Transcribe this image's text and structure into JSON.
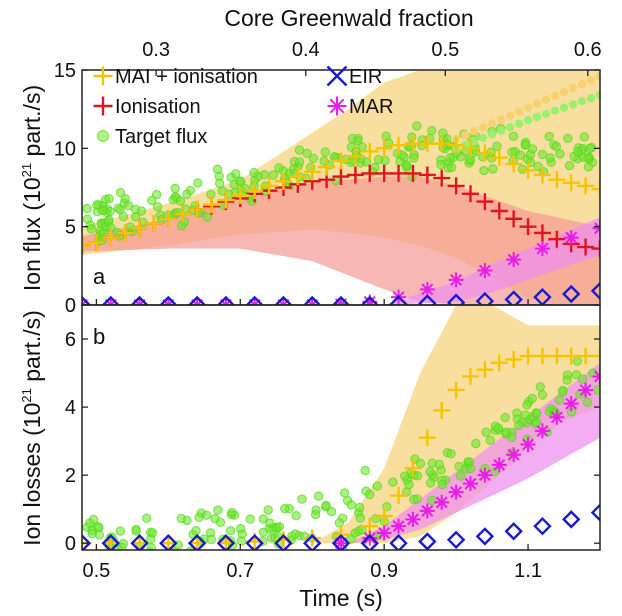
{
  "chart_data": {
    "type": "scatter",
    "top_axis": {
      "label": "Core Greenwald fraction",
      "ticks": [
        "0.3",
        "0.4",
        "0.5",
        "0.6"
      ],
      "tick_times": [
        0.583,
        0.791,
        0.985,
        1.183
      ]
    },
    "xlabel": "Time (s)",
    "xlim": [
      0.48,
      1.2
    ],
    "xticks": [
      "0.5",
      "0.7",
      "0.9",
      "1.1"
    ],
    "legend": [
      {
        "name": "MAI + ionisation",
        "color": "#f5c400",
        "marker": "plus"
      },
      {
        "name": "EIR",
        "color": "#1a1acc",
        "marker": "x"
      },
      {
        "name": "Ionisation",
        "color": "#e0141e",
        "marker": "plus"
      },
      {
        "name": "MAR",
        "color": "#e81ee8",
        "marker": "asterisk"
      },
      {
        "name": "Target flux",
        "color": "#6ee62d",
        "marker": "circle"
      }
    ],
    "panels": [
      {
        "id": "a",
        "label": "a",
        "ylabel": "Ion flux (10^21 part./s)",
        "ylabel_main": "Ion flux (10",
        "ylabel_exp": "21",
        "ylabel_tail": " part./s)",
        "ylim": [
          0,
          15
        ],
        "yticks": [
          "0",
          "5",
          "10",
          "15"
        ],
        "bands": [
          {
            "name": "MAI + ionisation",
            "color": "#f7d37a",
            "x": [
              0.48,
              0.6,
              0.7,
              0.8,
              0.85,
              0.9,
              0.95,
              1.0,
              1.05,
              1.1,
              1.15,
              1.2
            ],
            "upper": [
              5.0,
              6.5,
              8.0,
              11.0,
              12.5,
              14.2,
              15.0,
              15.0,
              15.0,
              15.0,
              15.0,
              15.0
            ],
            "lower": [
              3.2,
              3.8,
              4.5,
              4.8,
              4.6,
              4.3,
              3.8,
              3.0,
              1.8,
              0.4,
              0.0,
              0.0
            ]
          },
          {
            "name": "Ionisation",
            "color": "#f49b97",
            "x": [
              0.48,
              0.6,
              0.7,
              0.8,
              0.9,
              0.95,
              1.0,
              1.05,
              1.1,
              1.15,
              1.2
            ],
            "upper": [
              4.4,
              5.5,
              6.8,
              7.8,
              8.2,
              8.2,
              7.6,
              6.8,
              6.0,
              5.5,
              5.0
            ],
            "lower": [
              3.4,
              3.6,
              3.6,
              2.8,
              1.0,
              0.2,
              0.0,
              0.0,
              0.0,
              0.0,
              0.0
            ]
          },
          {
            "name": "MAR",
            "color": "#ee8fee",
            "x": [
              0.9,
              1.0,
              1.05,
              1.1,
              1.15,
              1.2
            ],
            "upper": [
              0.0,
              1.5,
              2.6,
              3.6,
              4.6,
              5.6
            ],
            "lower": [
              0.0,
              0.2,
              0.8,
              1.6,
              2.4,
              3.2
            ]
          }
        ],
        "series": [
          {
            "name": "Target flux",
            "type": "scatter_cloud",
            "x": [
              0.48,
              0.55,
              0.6,
              0.65,
              0.7,
              0.75,
              0.8,
              0.85,
              0.9,
              0.95,
              1.0,
              1.05,
              1.1,
              1.15,
              1.2
            ],
            "values": [
              5.3,
              5.8,
              6.3,
              6.9,
              7.5,
              8.3,
              8.9,
              9.3,
              9.6,
              9.8,
              9.9,
              9.9,
              9.8,
              9.7,
              9.6
            ],
            "spread": 0.9,
            "count": 230
          },
          {
            "name": "Target flux extrapolated",
            "type": "dotted",
            "x": [
              1.0,
              1.05,
              1.1,
              1.15,
              1.2
            ],
            "values": [
              10.0,
              10.9,
              11.8,
              12.6,
              13.4
            ]
          },
          {
            "name": "MAI + ionisation extrapolated",
            "type": "dotted",
            "x": [
              1.0,
              1.05,
              1.1,
              1.15,
              1.2
            ],
            "values": [
              10.6,
              11.6,
              12.6,
              13.6,
              14.6
            ]
          },
          {
            "name": "Ionisation",
            "x": [
              0.48,
              0.5,
              0.52,
              0.54,
              0.56,
              0.58,
              0.6,
              0.62,
              0.64,
              0.66,
              0.68,
              0.7,
              0.72,
              0.74,
              0.76,
              0.78,
              0.8,
              0.82,
              0.84,
              0.86,
              0.88,
              0.9,
              0.92,
              0.94,
              0.96,
              0.98,
              1.0,
              1.02,
              1.04,
              1.06,
              1.08,
              1.1,
              1.12,
              1.14,
              1.16,
              1.18,
              1.2
            ],
            "values": [
              3.8,
              4.0,
              4.3,
              4.6,
              4.9,
              5.2,
              5.5,
              5.8,
              6.1,
              6.3,
              6.6,
              6.8,
              7.1,
              7.3,
              7.5,
              7.7,
              7.9,
              8.0,
              8.2,
              8.3,
              8.4,
              8.4,
              8.4,
              8.4,
              8.3,
              8.1,
              7.6,
              7.1,
              6.6,
              6.0,
              5.5,
              5.0,
              4.6,
              4.2,
              3.9,
              3.7,
              3.6
            ]
          },
          {
            "name": "MAI + ionisation",
            "x": [
              0.48,
              0.5,
              0.52,
              0.54,
              0.56,
              0.58,
              0.6,
              0.62,
              0.64,
              0.66,
              0.68,
              0.7,
              0.72,
              0.74,
              0.76,
              0.78,
              0.8,
              0.82,
              0.84,
              0.86,
              0.88,
              0.9,
              0.92,
              0.94,
              0.96,
              0.98,
              1.0,
              1.02,
              1.04,
              1.06,
              1.08,
              1.1,
              1.12,
              1.14,
              1.16,
              1.18,
              1.2
            ],
            "values": [
              3.8,
              4.0,
              4.3,
              4.6,
              4.9,
              5.2,
              5.5,
              5.8,
              6.1,
              6.4,
              6.7,
              7.0,
              7.3,
              7.6,
              7.9,
              8.2,
              8.5,
              8.8,
              9.2,
              9.5,
              9.8,
              10.0,
              10.2,
              10.3,
              10.3,
              10.3,
              10.2,
              10.0,
              9.7,
              9.4,
              9.0,
              8.6,
              8.3,
              8.0,
              7.8,
              7.6,
              7.4
            ]
          },
          {
            "name": "EIR",
            "x": [
              0.48,
              0.52,
              0.56,
              0.6,
              0.64,
              0.68,
              0.72,
              0.76,
              0.8,
              0.84,
              0.88,
              0.92,
              0.96,
              1.0,
              1.04,
              1.08,
              1.12,
              1.16,
              1.2
            ],
            "values": [
              0.0,
              0.0,
              0.0,
              0.0,
              0.0,
              0.0,
              0.0,
              0.0,
              0.0,
              0.0,
              0.0,
              0.05,
              0.1,
              0.15,
              0.25,
              0.35,
              0.5,
              0.7,
              0.9
            ]
          },
          {
            "name": "MAR",
            "x": [
              0.48,
              0.52,
              0.56,
              0.6,
              0.64,
              0.68,
              0.72,
              0.76,
              0.8,
              0.84,
              0.88,
              0.92,
              0.96,
              1.0,
              1.04,
              1.08,
              1.12,
              1.16,
              1.2
            ],
            "values": [
              0.0,
              0.0,
              0.0,
              0.0,
              0.0,
              0.0,
              0.0,
              0.0,
              0.0,
              0.05,
              0.2,
              0.5,
              1.0,
              1.6,
              2.2,
              2.9,
              3.6,
              4.3,
              4.9
            ]
          }
        ]
      },
      {
        "id": "b",
        "label": "b",
        "ylabel": "Ion losses (10^21 part./s)",
        "ylabel_main": "Ion losses (10",
        "ylabel_exp": "21",
        "ylabel_tail": " part./s)",
        "ylim": [
          -0.2,
          7
        ],
        "yticks": [
          "0",
          "2",
          "4",
          "6"
        ],
        "bands": [
          {
            "name": "MAI + ionisation",
            "color": "#f7d37a",
            "x": [
              0.8,
              0.85,
              0.9,
              0.95,
              1.0,
              1.05,
              1.1,
              1.15,
              1.2
            ],
            "upper": [
              0.0,
              0.6,
              2.2,
              5.0,
              7.0,
              7.0,
              6.4,
              6.4,
              6.4
            ],
            "lower": [
              0.0,
              0.0,
              0.0,
              0.2,
              0.9,
              1.8,
              2.8,
              3.6,
              4.0
            ]
          },
          {
            "name": "MAR",
            "color": "#ee8fee",
            "x": [
              0.85,
              0.9,
              0.95,
              1.0,
              1.05,
              1.1,
              1.15,
              1.2
            ],
            "upper": [
              0.0,
              0.5,
              1.3,
              2.1,
              2.9,
              3.7,
              4.5,
              5.3
            ],
            "lower": [
              0.0,
              0.1,
              0.4,
              0.9,
              1.4,
              1.9,
              2.5,
              3.1
            ]
          }
        ],
        "series": [
          {
            "name": "Target flux",
            "type": "scatter_cloud",
            "x": [
              0.48,
              0.6,
              0.7,
              0.8,
              0.85,
              0.9,
              0.95,
              1.0,
              1.05,
              1.1,
              1.15,
              1.2
            ],
            "values": [
              0.2,
              0.3,
              0.4,
              0.5,
              0.8,
              1.2,
              1.7,
              2.3,
              2.9,
              3.6,
              4.4,
              5.2
            ],
            "spread": 0.6,
            "count": 200
          },
          {
            "name": "MAI + ionisation",
            "x": [
              0.48,
              0.52,
              0.56,
              0.6,
              0.64,
              0.68,
              0.72,
              0.76,
              0.8,
              0.84,
              0.88,
              0.9,
              0.92,
              0.94,
              0.96,
              0.98,
              1.0,
              1.02,
              1.04,
              1.06,
              1.08,
              1.1,
              1.12,
              1.14,
              1.16,
              1.18,
              1.2
            ],
            "values": [
              0.0,
              0.0,
              0.0,
              0.0,
              0.0,
              0.0,
              0.05,
              0.1,
              0.15,
              0.25,
              0.5,
              0.8,
              1.4,
              2.2,
              3.1,
              3.9,
              4.5,
              4.9,
              5.1,
              5.3,
              5.4,
              5.5,
              5.5,
              5.5,
              5.5,
              5.5,
              5.5
            ]
          },
          {
            "name": "EIR",
            "x": [
              0.48,
              0.52,
              0.56,
              0.6,
              0.64,
              0.68,
              0.72,
              0.76,
              0.8,
              0.84,
              0.88,
              0.92,
              0.96,
              1.0,
              1.04,
              1.08,
              1.12,
              1.16,
              1.2
            ],
            "values": [
              0.0,
              0.0,
              0.0,
              0.0,
              0.0,
              0.0,
              0.0,
              0.0,
              0.0,
              0.0,
              0.0,
              0.0,
              0.05,
              0.1,
              0.2,
              0.35,
              0.5,
              0.7,
              0.9
            ]
          },
          {
            "name": "MAR",
            "x": [
              0.84,
              0.88,
              0.9,
              0.92,
              0.94,
              0.96,
              0.98,
              1.0,
              1.02,
              1.04,
              1.06,
              1.08,
              1.1,
              1.12,
              1.14,
              1.16,
              1.18,
              1.2
            ],
            "values": [
              0.0,
              0.15,
              0.3,
              0.5,
              0.7,
              0.95,
              1.2,
              1.5,
              1.75,
              2.0,
              2.3,
              2.6,
              2.9,
              3.3,
              3.7,
              4.1,
              4.5,
              4.9
            ]
          }
        ]
      }
    ]
  }
}
